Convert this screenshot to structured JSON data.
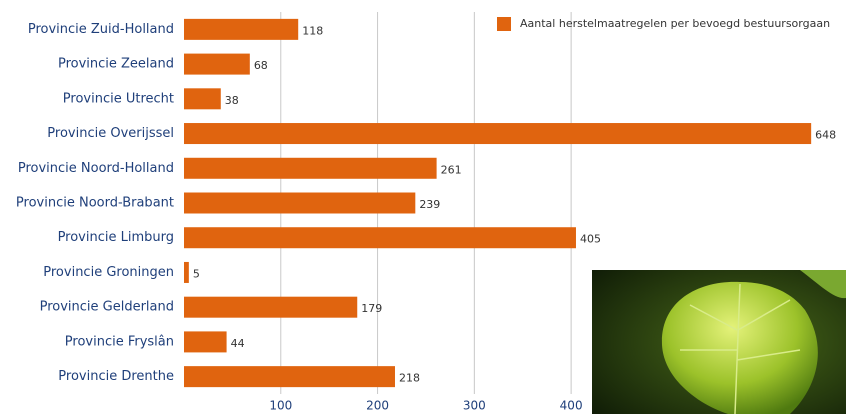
{
  "chart_data": {
    "type": "bar",
    "orientation": "horizontal",
    "categories": [
      "Provincie Zuid-Holland",
      "Provincie Zeeland",
      "Provincie Utrecht",
      "Provincie Overijssel",
      "Provincie Noord-Holland",
      "Provincie Noord-Brabant",
      "Provincie Limburg",
      "Provincie Groningen",
      "Provincie Gelderland",
      "Provincie Fryslân",
      "Provincie Drenthe"
    ],
    "series": [
      {
        "name": "Aantal herstelmaatregelen per bevoegd bestuursorgaan",
        "color": "#e0640f",
        "values": [
          118,
          68,
          38,
          648,
          261,
          239,
          405,
          5,
          179,
          44,
          218
        ]
      }
    ],
    "xlim": [
      0,
      684
    ],
    "xticks": [
      100,
      200,
      300,
      400
    ],
    "grid": true,
    "legend": "top-right"
  }
}
